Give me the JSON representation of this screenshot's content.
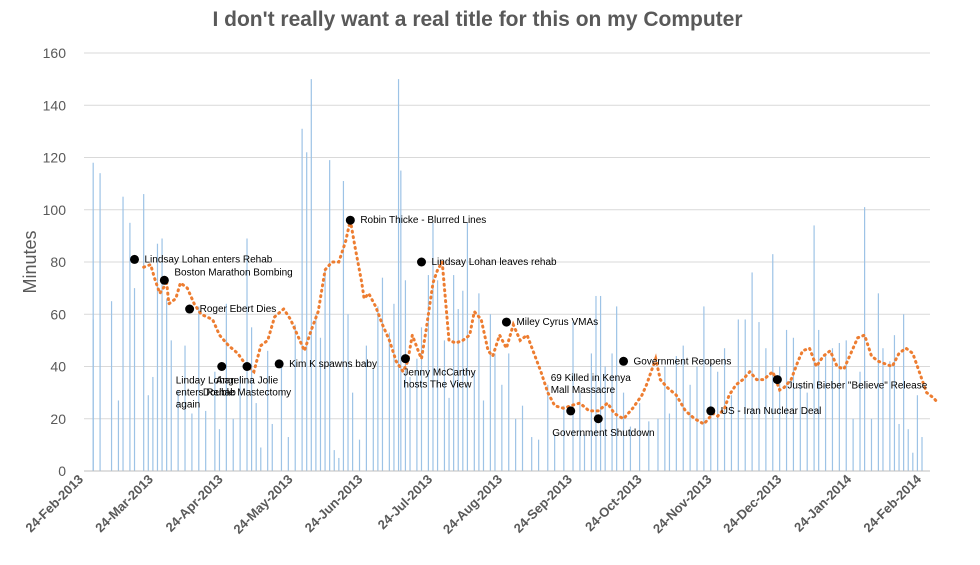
{
  "chart_data": {
    "type": "bar+line",
    "title": "I don't really want a real title for this on my Computer",
    "ylabel": "Minutes",
    "xlabel": "",
    "ylim": [
      0,
      160
    ],
    "yticks": [
      0,
      20,
      40,
      60,
      80,
      100,
      120,
      140,
      160
    ],
    "xlim": [
      "2013-02-24",
      "2014-02-24"
    ],
    "xticks": [
      "24-Feb-2013",
      "24-Mar-2013",
      "24-Apr-2013",
      "24-May-2013",
      "24-Jun-2013",
      "24-Jul-2013",
      "24-Aug-2013",
      "24-Sep-2013",
      "24-Oct-2013",
      "24-Nov-2013",
      "24-Dec-2013",
      "24-Jan-2014",
      "24-Feb-2014"
    ],
    "grid": true,
    "colors": {
      "bars": "#9dc3e6",
      "trend": "#ed7d31",
      "markers": "#000000"
    },
    "daily_minutes": [
      [
        "2013-02-28",
        58
      ],
      [
        "2013-02-28",
        118
      ],
      [
        "2013-03-03",
        114
      ],
      [
        "2013-03-08",
        65
      ],
      [
        "2013-03-11",
        27
      ],
      [
        "2013-03-13",
        105
      ],
      [
        "2013-03-16",
        95
      ],
      [
        "2013-03-18",
        70
      ],
      [
        "2013-03-22",
        106
      ],
      [
        "2013-03-24",
        29
      ],
      [
        "2013-03-26",
        36
      ],
      [
        "2013-03-28",
        87
      ],
      [
        "2013-03-30",
        89
      ],
      [
        "2013-04-01",
        66
      ],
      [
        "2013-04-03",
        50
      ],
      [
        "2013-04-06",
        31
      ],
      [
        "2013-04-09",
        48
      ],
      [
        "2013-04-12",
        22
      ],
      [
        "2013-04-15",
        63
      ],
      [
        "2013-04-18",
        23
      ],
      [
        "2013-04-22",
        38
      ],
      [
        "2013-04-24",
        16
      ],
      [
        "2013-04-27",
        64
      ],
      [
        "2013-04-30",
        20
      ],
      [
        "2013-05-03",
        36
      ],
      [
        "2013-05-06",
        89
      ],
      [
        "2013-05-08",
        55
      ],
      [
        "2013-05-10",
        26
      ],
      [
        "2013-05-12",
        9
      ],
      [
        "2013-05-15",
        46
      ],
      [
        "2013-05-17",
        18
      ],
      [
        "2013-05-21",
        42
      ],
      [
        "2013-05-24",
        13
      ],
      [
        "2013-05-27",
        56
      ],
      [
        "2013-05-30",
        131
      ],
      [
        "2013-06-01",
        122
      ],
      [
        "2013-06-03",
        150
      ],
      [
        "2013-06-05",
        60
      ],
      [
        "2013-06-07",
        51
      ],
      [
        "2013-06-09",
        77
      ],
      [
        "2013-06-11",
        119
      ],
      [
        "2013-06-13",
        8
      ],
      [
        "2013-06-15",
        5
      ],
      [
        "2013-06-17",
        111
      ],
      [
        "2013-06-19",
        60
      ],
      [
        "2013-06-21",
        30
      ],
      [
        "2013-06-24",
        12
      ],
      [
        "2013-06-27",
        48
      ],
      [
        "2013-06-30",
        39
      ],
      [
        "2013-07-02",
        63
      ],
      [
        "2013-07-04",
        74
      ],
      [
        "2013-07-07",
        53
      ],
      [
        "2013-07-09",
        64
      ],
      [
        "2013-07-11",
        150
      ],
      [
        "2013-07-12",
        115
      ],
      [
        "2013-07-14",
        73
      ],
      [
        "2013-07-16",
        36
      ],
      [
        "2013-07-19",
        43
      ],
      [
        "2013-07-21",
        55
      ],
      [
        "2013-07-24",
        75
      ],
      [
        "2013-07-26",
        95
      ],
      [
        "2013-07-28",
        73
      ],
      [
        "2013-07-31",
        50
      ],
      [
        "2013-08-02",
        28
      ],
      [
        "2013-08-04",
        75
      ],
      [
        "2013-08-06",
        62
      ],
      [
        "2013-08-08",
        69
      ],
      [
        "2013-08-10",
        95
      ],
      [
        "2013-08-13",
        38
      ],
      [
        "2013-08-15",
        68
      ],
      [
        "2013-08-17",
        27
      ],
      [
        "2013-08-20",
        60
      ],
      [
        "2013-08-22",
        45
      ],
      [
        "2013-08-25",
        33
      ],
      [
        "2013-08-28",
        45
      ],
      [
        "2013-08-31",
        20
      ],
      [
        "2013-09-03",
        25
      ],
      [
        "2013-09-07",
        13
      ],
      [
        "2013-09-10",
        12
      ],
      [
        "2013-09-14",
        33
      ],
      [
        "2013-09-17",
        14
      ],
      [
        "2013-09-21",
        25
      ],
      [
        "2013-09-25",
        57
      ],
      [
        "2013-09-28",
        30
      ],
      [
        "2013-09-30",
        14
      ],
      [
        "2013-10-03",
        45
      ],
      [
        "2013-10-05",
        67
      ],
      [
        "2013-10-07",
        67
      ],
      [
        "2013-10-09",
        40
      ],
      [
        "2013-10-12",
        45
      ],
      [
        "2013-10-14",
        63
      ],
      [
        "2013-10-17",
        30
      ],
      [
        "2013-10-20",
        17
      ],
      [
        "2013-10-24",
        26
      ],
      [
        "2013-10-28",
        19
      ],
      [
        "2013-11-01",
        20
      ],
      [
        "2013-11-04",
        40
      ],
      [
        "2013-11-06",
        22
      ],
      [
        "2013-11-09",
        44
      ],
      [
        "2013-11-12",
        48
      ],
      [
        "2013-11-15",
        33
      ],
      [
        "2013-11-18",
        40
      ],
      [
        "2013-11-21",
        63
      ],
      [
        "2013-11-24",
        41
      ],
      [
        "2013-11-27",
        38
      ],
      [
        "2013-11-30",
        47
      ],
      [
        "2013-12-03",
        29
      ],
      [
        "2013-12-06",
        58
      ],
      [
        "2013-12-09",
        58
      ],
      [
        "2013-12-12",
        76
      ],
      [
        "2013-12-15",
        57
      ],
      [
        "2013-12-18",
        47
      ],
      [
        "2013-12-21",
        83
      ],
      [
        "2013-12-24",
        40
      ],
      [
        "2013-12-27",
        54
      ],
      [
        "2013-12-30",
        51
      ],
      [
        "2014-01-02",
        33
      ],
      [
        "2014-01-05",
        30
      ],
      [
        "2014-01-08",
        94
      ],
      [
        "2014-01-10",
        54
      ],
      [
        "2014-01-13",
        44
      ],
      [
        "2014-01-16",
        47
      ],
      [
        "2014-01-19",
        49
      ],
      [
        "2014-01-22",
        50
      ],
      [
        "2014-01-25",
        20
      ],
      [
        "2014-01-28",
        38
      ],
      [
        "2014-01-30",
        101
      ],
      [
        "2014-02-02",
        20
      ],
      [
        "2014-02-05",
        68
      ],
      [
        "2014-02-07",
        47
      ],
      [
        "2014-02-10",
        42
      ],
      [
        "2014-02-12",
        52
      ],
      [
        "2014-02-14",
        18
      ],
      [
        "2014-02-16",
        60
      ],
      [
        "2014-02-18",
        16
      ],
      [
        "2014-02-20",
        7
      ],
      [
        "2014-02-22",
        29
      ],
      [
        "2014-02-24",
        13
      ]
    ],
    "trend": [
      [
        "2013-03-22",
        78
      ],
      [
        "2013-03-25",
        79
      ],
      [
        "2013-03-27",
        73
      ],
      [
        "2013-03-29",
        68
      ],
      [
        "2013-04-01",
        72
      ],
      [
        "2013-04-02",
        64
      ],
      [
        "2013-04-05",
        66
      ],
      [
        "2013-04-07",
        72
      ],
      [
        "2013-04-10",
        70
      ],
      [
        "2013-04-13",
        64
      ],
      [
        "2013-04-16",
        60
      ],
      [
        "2013-04-21",
        58
      ],
      [
        "2013-04-24",
        52
      ],
      [
        "2013-04-28",
        48
      ],
      [
        "2013-05-02",
        45
      ],
      [
        "2013-05-06",
        40
      ],
      [
        "2013-05-09",
        38
      ],
      [
        "2013-05-12",
        48
      ],
      [
        "2013-05-15",
        50
      ],
      [
        "2013-05-18",
        59
      ],
      [
        "2013-05-22",
        62
      ],
      [
        "2013-05-25",
        58
      ],
      [
        "2013-05-28",
        52
      ],
      [
        "2013-05-31",
        46
      ],
      [
        "2013-06-03",
        54
      ],
      [
        "2013-06-06",
        61
      ],
      [
        "2013-06-09",
        77
      ],
      [
        "2013-06-12",
        80
      ],
      [
        "2013-06-15",
        80
      ],
      [
        "2013-06-18",
        88
      ],
      [
        "2013-06-20",
        96
      ],
      [
        "2013-06-22",
        86
      ],
      [
        "2013-06-25",
        72
      ],
      [
        "2013-06-26",
        66
      ],
      [
        "2013-06-28",
        68
      ],
      [
        "2013-07-01",
        63
      ],
      [
        "2013-07-04",
        56
      ],
      [
        "2013-07-07",
        50
      ],
      [
        "2013-07-10",
        42
      ],
      [
        "2013-07-13",
        38
      ],
      [
        "2013-07-15",
        42
      ],
      [
        "2013-07-17",
        52
      ],
      [
        "2013-07-20",
        45
      ],
      [
        "2013-07-21",
        43
      ],
      [
        "2013-07-23",
        54
      ],
      [
        "2013-07-26",
        72
      ],
      [
        "2013-07-28",
        77
      ],
      [
        "2013-07-30",
        80
      ],
      [
        "2013-08-02",
        50
      ],
      [
        "2013-08-05",
        49
      ],
      [
        "2013-08-08",
        50
      ],
      [
        "2013-08-11",
        52
      ],
      [
        "2013-08-13",
        61
      ],
      [
        "2013-08-16",
        58
      ],
      [
        "2013-08-19",
        46
      ],
      [
        "2013-08-21",
        44
      ],
      [
        "2013-08-24",
        52
      ],
      [
        "2013-08-27",
        47
      ],
      [
        "2013-08-30",
        56
      ],
      [
        "2013-09-02",
        50
      ],
      [
        "2013-09-05",
        52
      ],
      [
        "2013-09-08",
        45
      ],
      [
        "2013-09-11",
        38
      ],
      [
        "2013-09-14",
        30
      ],
      [
        "2013-09-17",
        25
      ],
      [
        "2013-09-21",
        24
      ],
      [
        "2013-09-24",
        25
      ],
      [
        "2013-09-28",
        26
      ],
      [
        "2013-10-02",
        23
      ],
      [
        "2013-10-06",
        23
      ],
      [
        "2013-10-10",
        26
      ],
      [
        "2013-10-13",
        22
      ],
      [
        "2013-10-17",
        20
      ],
      [
        "2013-10-21",
        24
      ],
      [
        "2013-10-25",
        29
      ],
      [
        "2013-10-27",
        33
      ],
      [
        "2013-10-29",
        38
      ],
      [
        "2013-10-31",
        43
      ],
      [
        "2013-11-02",
        35
      ],
      [
        "2013-11-05",
        32
      ],
      [
        "2013-11-09",
        29
      ],
      [
        "2013-11-13",
        23
      ],
      [
        "2013-11-17",
        20
      ],
      [
        "2013-11-21",
        18
      ],
      [
        "2013-11-25",
        22
      ],
      [
        "2013-11-27",
        21
      ],
      [
        "2013-11-30",
        24
      ],
      [
        "2013-12-02",
        29
      ],
      [
        "2013-12-05",
        33
      ],
      [
        "2013-12-08",
        35
      ],
      [
        "2013-12-11",
        38
      ],
      [
        "2013-12-14",
        35
      ],
      [
        "2013-12-17",
        35
      ],
      [
        "2013-12-21",
        38
      ],
      [
        "2013-12-24",
        31
      ],
      [
        "2013-12-26",
        32
      ],
      [
        "2013-12-29",
        35
      ],
      [
        "2014-01-01",
        42
      ],
      [
        "2014-01-03",
        46
      ],
      [
        "2014-01-06",
        47
      ],
      [
        "2014-01-09",
        40
      ],
      [
        "2014-01-12",
        44
      ],
      [
        "2014-01-15",
        46
      ],
      [
        "2014-01-18",
        40
      ],
      [
        "2014-01-21",
        39
      ],
      [
        "2014-01-24",
        45
      ],
      [
        "2014-01-27",
        51
      ],
      [
        "2014-01-30",
        52
      ],
      [
        "2014-02-02",
        44
      ],
      [
        "2014-02-05",
        42
      ],
      [
        "2014-02-08",
        41
      ],
      [
        "2014-02-11",
        40
      ],
      [
        "2014-02-14",
        45
      ],
      [
        "2014-02-17",
        47
      ],
      [
        "2014-02-20",
        45
      ],
      [
        "2014-02-24",
        35
      ],
      [
        "2014-02-26",
        30
      ],
      [
        "2014-03-01",
        28
      ],
      [
        "2014-03-03",
        26
      ]
    ],
    "annotations": [
      {
        "date": "2013-03-18",
        "value": 81,
        "lines": [
          "Lindsay Lohan enters Rehab"
        ],
        "anchor": "start"
      },
      {
        "date": "2013-03-31",
        "value": 73,
        "lines": [
          "Boston Marathon Bombing"
        ],
        "anchor": "start",
        "dy": -8
      },
      {
        "date": "2013-04-11",
        "value": 62,
        "lines": [
          "Roger Ebert Dies"
        ],
        "anchor": "start"
      },
      {
        "date": "2013-04-25",
        "value": 40,
        "lines": [
          "Linday Lohan",
          "enters Rehab",
          "again"
        ],
        "anchor": "start",
        "below": true
      },
      {
        "date": "2013-05-06",
        "value": 40,
        "lines": [
          "Angelina Jolie",
          "Double Mastectomy"
        ],
        "anchor": "middle",
        "below": true
      },
      {
        "date": "2013-05-20",
        "value": 41,
        "lines": [
          "Kim K spawns baby"
        ],
        "anchor": "start"
      },
      {
        "date": "2013-06-20",
        "value": 96,
        "lines": [
          "Robin Thicke - Blurred Lines"
        ],
        "anchor": "start"
      },
      {
        "date": "2013-07-14",
        "value": 43,
        "lines": [
          "Jenny McCarthy",
          "hosts The View"
        ],
        "anchor": "start",
        "below": true
      },
      {
        "date": "2013-07-21",
        "value": 80,
        "lines": [
          "Lindsay Lohan leaves rehab"
        ],
        "anchor": "start"
      },
      {
        "date": "2013-08-27",
        "value": 57,
        "lines": [
          "Miley Cyrus VMAs"
        ],
        "anchor": "start"
      },
      {
        "date": "2013-09-24",
        "value": 23,
        "lines": [
          "69 Killed in Kenya",
          "Mall Massacre"
        ],
        "anchor": "start",
        "above": true
      },
      {
        "date": "2013-10-06",
        "value": 20,
        "lines": [
          "Government Shutdown"
        ],
        "anchor": "start",
        "below": true
      },
      {
        "date": "2013-10-17",
        "value": 42,
        "lines": [
          "Government Reopens"
        ],
        "anchor": "start"
      },
      {
        "date": "2013-11-24",
        "value": 23,
        "lines": [
          "US - Iran Nuclear Deal"
        ],
        "anchor": "start"
      },
      {
        "date": "2013-12-23",
        "value": 35,
        "lines": [
          "Justin Bieber \"Believe\" Release"
        ],
        "anchor": "start",
        "dy": 6
      }
    ]
  }
}
